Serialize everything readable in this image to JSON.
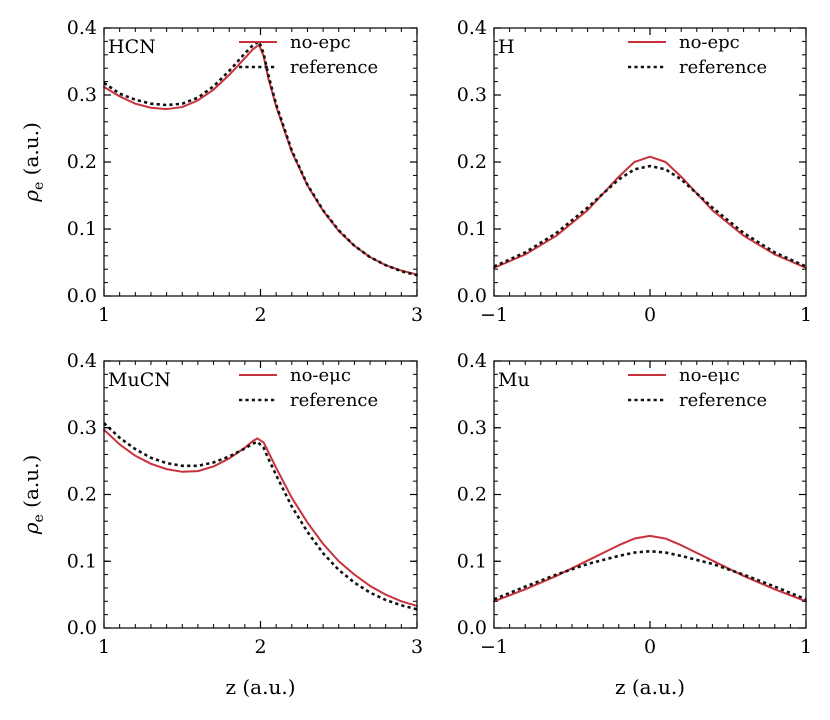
{
  "figure": {
    "xlabel": "z (a.u.)",
    "ylabel_symbol": "ρ",
    "ylabel_subscript": "e",
    "ylabel_unit": "(a.u.)"
  },
  "colors": {
    "no_coupling": "#c8323c",
    "reference": "#111111"
  },
  "chart_data": [
    {
      "type": "line",
      "panel_label": "HCN",
      "xlim": [
        1,
        3
      ],
      "ylim": [
        0,
        0.4
      ],
      "xticks": [
        "1",
        "2",
        "3"
      ],
      "yticks": [
        "0.0",
        "0.1",
        "0.2",
        "0.3",
        "0.4"
      ],
      "xlabel": "",
      "ylabel": "ρe (a.u.)",
      "legend": [
        "no-epc",
        "reference"
      ],
      "series": [
        {
          "name": "no-epc",
          "style": "solid",
          "x": [
            1.0,
            1.1,
            1.2,
            1.3,
            1.4,
            1.5,
            1.6,
            1.7,
            1.8,
            1.9,
            1.95,
            1.99,
            2.02,
            2.05,
            2.1,
            2.2,
            2.3,
            2.4,
            2.5,
            2.6,
            2.7,
            2.8,
            2.9,
            3.0
          ],
          "y": [
            0.312,
            0.298,
            0.287,
            0.281,
            0.279,
            0.282,
            0.292,
            0.308,
            0.33,
            0.355,
            0.368,
            0.375,
            0.358,
            0.325,
            0.283,
            0.215,
            0.165,
            0.127,
            0.097,
            0.075,
            0.058,
            0.046,
            0.038,
            0.032
          ]
        },
        {
          "name": "reference",
          "style": "dotted",
          "x": [
            1.0,
            1.1,
            1.2,
            1.3,
            1.4,
            1.5,
            1.6,
            1.7,
            1.8,
            1.9,
            1.95,
            1.99,
            2.02,
            2.05,
            2.1,
            2.2,
            2.3,
            2.4,
            2.5,
            2.6,
            2.7,
            2.8,
            2.9,
            3.0
          ],
          "y": [
            0.318,
            0.302,
            0.293,
            0.287,
            0.285,
            0.287,
            0.296,
            0.313,
            0.336,
            0.362,
            0.374,
            0.38,
            0.362,
            0.33,
            0.286,
            0.217,
            0.166,
            0.128,
            0.098,
            0.075,
            0.058,
            0.046,
            0.037,
            0.031
          ]
        }
      ]
    },
    {
      "type": "line",
      "panel_label": "H",
      "xlim": [
        -1,
        1
      ],
      "ylim": [
        0,
        0.4
      ],
      "xticks": [
        "−1",
        "0",
        "1"
      ],
      "yticks": [
        "0.0",
        "0.1",
        "0.2",
        "0.3",
        "0.4"
      ],
      "xlabel": "",
      "ylabel": "",
      "legend": [
        "no-epc",
        "reference"
      ],
      "series": [
        {
          "name": "no-epc",
          "style": "solid",
          "x": [
            -1.0,
            -0.8,
            -0.6,
            -0.4,
            -0.2,
            -0.1,
            0.0,
            0.1,
            0.2,
            0.4,
            0.6,
            0.8,
            1.0
          ],
          "y": [
            0.042,
            0.062,
            0.09,
            0.128,
            0.178,
            0.2,
            0.208,
            0.2,
            0.178,
            0.128,
            0.09,
            0.062,
            0.042
          ]
        },
        {
          "name": "reference",
          "style": "dotted",
          "x": [
            -1.0,
            -0.8,
            -0.6,
            -0.4,
            -0.2,
            -0.1,
            0.0,
            0.1,
            0.2,
            0.4,
            0.6,
            0.8,
            1.0
          ],
          "y": [
            0.044,
            0.065,
            0.094,
            0.132,
            0.174,
            0.189,
            0.194,
            0.189,
            0.174,
            0.132,
            0.094,
            0.065,
            0.044
          ]
        }
      ]
    },
    {
      "type": "line",
      "panel_label": "MuCN",
      "xlim": [
        1,
        3
      ],
      "ylim": [
        0,
        0.4
      ],
      "xticks": [
        "1",
        "2",
        "3"
      ],
      "yticks": [
        "0.0",
        "0.1",
        "0.2",
        "0.3",
        "0.4"
      ],
      "xlabel": "z (a.u.)",
      "ylabel": "ρe (a.u.)",
      "legend": [
        "no-eμc",
        "reference"
      ],
      "series": [
        {
          "name": "no-eμc",
          "style": "solid",
          "x": [
            1.0,
            1.1,
            1.2,
            1.3,
            1.4,
            1.5,
            1.6,
            1.7,
            1.8,
            1.9,
            1.95,
            1.98,
            2.02,
            2.05,
            2.1,
            2.2,
            2.3,
            2.4,
            2.5,
            2.6,
            2.7,
            2.8,
            2.9,
            3.0
          ],
          "y": [
            0.297,
            0.275,
            0.258,
            0.246,
            0.238,
            0.234,
            0.235,
            0.242,
            0.254,
            0.27,
            0.28,
            0.284,
            0.278,
            0.264,
            0.24,
            0.195,
            0.158,
            0.126,
            0.1,
            0.08,
            0.063,
            0.05,
            0.04,
            0.033
          ]
        },
        {
          "name": "reference",
          "style": "dotted",
          "x": [
            1.0,
            1.1,
            1.2,
            1.3,
            1.4,
            1.5,
            1.6,
            1.7,
            1.8,
            1.9,
            1.95,
            1.98,
            2.02,
            2.05,
            2.1,
            2.2,
            2.3,
            2.4,
            2.5,
            2.6,
            2.7,
            2.8,
            2.9,
            3.0
          ],
          "y": [
            0.307,
            0.285,
            0.268,
            0.255,
            0.247,
            0.243,
            0.243,
            0.248,
            0.257,
            0.269,
            0.276,
            0.279,
            0.27,
            0.254,
            0.229,
            0.182,
            0.144,
            0.112,
            0.087,
            0.068,
            0.053,
            0.042,
            0.034,
            0.028
          ]
        }
      ]
    },
    {
      "type": "line",
      "panel_label": "Mu",
      "xlim": [
        -1,
        1
      ],
      "ylim": [
        0,
        0.4
      ],
      "xticks": [
        "−1",
        "0",
        "1"
      ],
      "yticks": [
        "0.0",
        "0.1",
        "0.2",
        "0.3",
        "0.4"
      ],
      "xlabel": "z (a.u.)",
      "ylabel": "",
      "legend": [
        "no-eμc",
        "reference"
      ],
      "series": [
        {
          "name": "no-eμc",
          "style": "solid",
          "x": [
            -1.0,
            -0.8,
            -0.6,
            -0.4,
            -0.2,
            -0.1,
            0.0,
            0.1,
            0.2,
            0.4,
            0.6,
            0.8,
            1.0
          ],
          "y": [
            0.04,
            0.058,
            0.078,
            0.101,
            0.124,
            0.134,
            0.138,
            0.134,
            0.124,
            0.101,
            0.078,
            0.058,
            0.04
          ]
        },
        {
          "name": "reference",
          "style": "dotted",
          "x": [
            -1.0,
            -0.8,
            -0.6,
            -0.4,
            -0.2,
            -0.1,
            0.0,
            0.1,
            0.2,
            0.4,
            0.6,
            0.8,
            1.0
          ],
          "y": [
            0.043,
            0.062,
            0.08,
            0.096,
            0.108,
            0.113,
            0.115,
            0.113,
            0.108,
            0.096,
            0.08,
            0.062,
            0.043
          ]
        }
      ]
    }
  ]
}
